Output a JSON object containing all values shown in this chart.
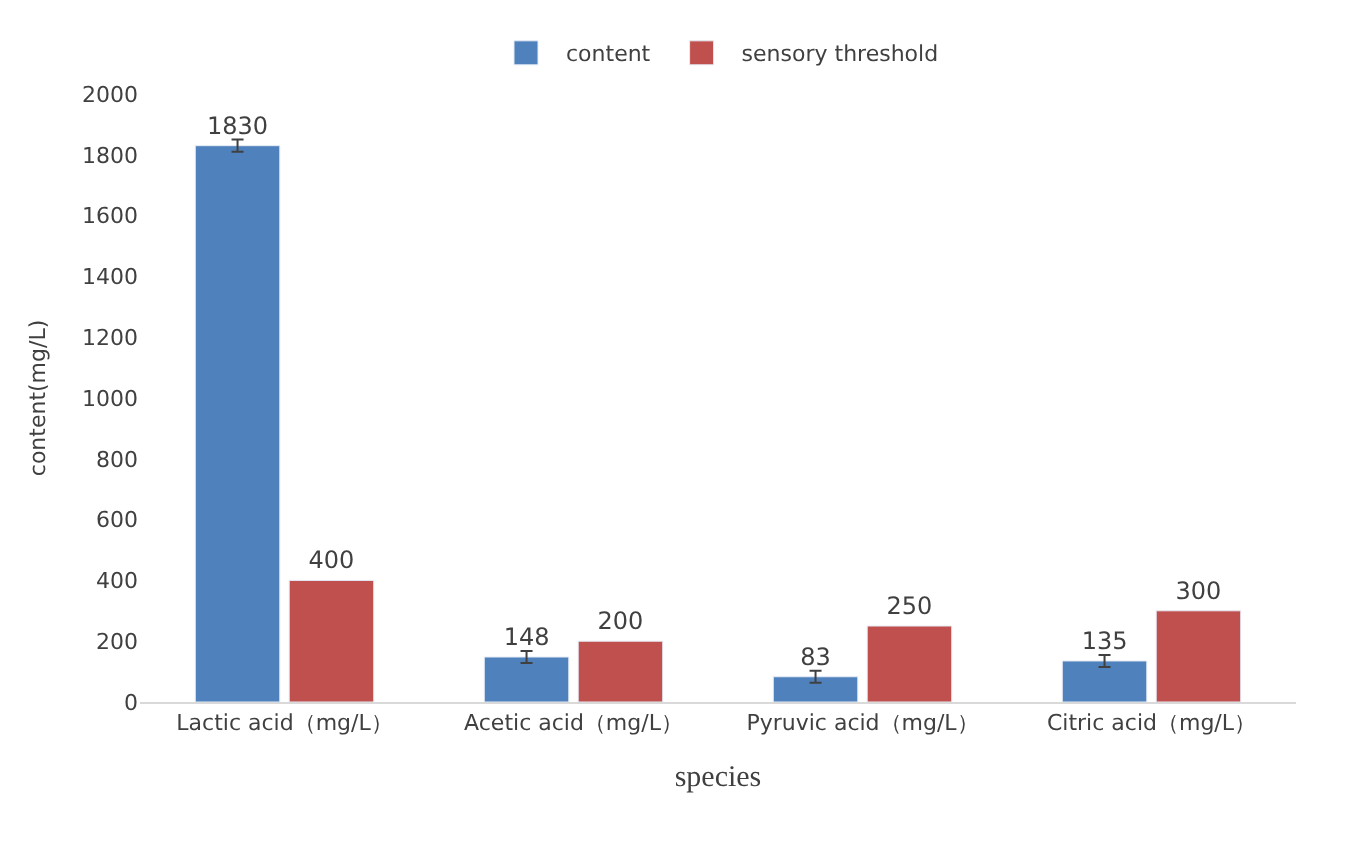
{
  "chart_data": {
    "type": "bar",
    "xlabel": "species",
    "ylabel": "content(mg/L)",
    "categories": [
      "Lactic acid（mg/L）",
      "Acetic acid（mg/L）",
      "Pyruvic acid（mg/L）",
      "Citric acid（mg/L）"
    ],
    "series": [
      {
        "name": "content",
        "color": "#4f81bd",
        "values": [
          1830,
          148,
          83,
          135
        ],
        "errors": [
          20,
          20,
          20,
          20
        ]
      },
      {
        "name": "sensory threshold",
        "color": "#c0504d",
        "values": [
          400,
          200,
          250,
          300
        ]
      }
    ],
    "ylim": [
      0,
      2000
    ],
    "yticks": [
      0,
      200,
      400,
      600,
      800,
      1000,
      1200,
      1400,
      1600,
      1800,
      2000
    ],
    "data_labels": true,
    "legend": "top"
  }
}
